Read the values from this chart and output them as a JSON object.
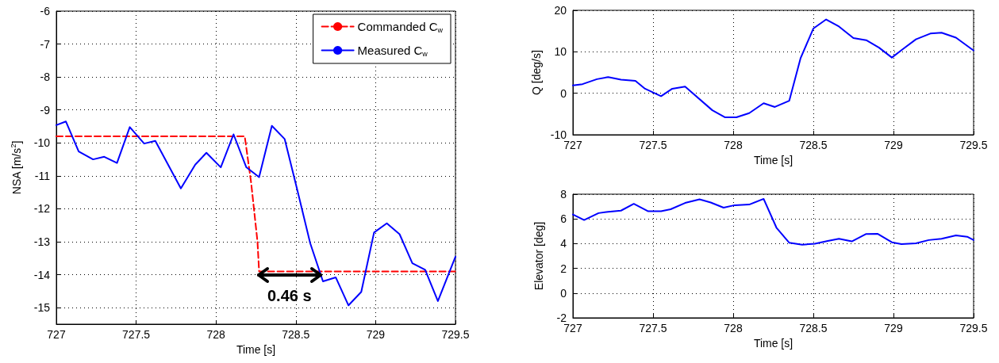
{
  "chart_data": [
    {
      "type": "line",
      "xlabel": "Time [s]",
      "ylabel": "NSA [m/s$^{2}$]",
      "xlim": [
        727,
        729.5
      ],
      "xticks": [
        727,
        727.5,
        728,
        728.5,
        729,
        729.5
      ],
      "ylim": [
        -15.5,
        -6
      ],
      "yticks": [
        -6,
        -7,
        -8,
        -9,
        -10,
        -11,
        -12,
        -13,
        -14,
        -15
      ],
      "grid": true,
      "legend": "top right",
      "marker": "none",
      "series": [
        {
          "name": "Commanded C$_{w}$",
          "color": "#ff0000",
          "line_style": "dashed",
          "x": [
            727,
            728.18,
            728.2,
            728.22,
            728.26,
            728.27,
            729.5
          ],
          "values": [
            -9.8,
            -9.8,
            -10.5,
            -11.2,
            -13.0,
            -13.9,
            -13.9
          ]
        },
        {
          "name": "Measured C$_{w}$",
          "color": "#0000ff",
          "line_style": "solid",
          "x": [
            727.0,
            727.06,
            727.14,
            727.23,
            727.3,
            727.38,
            727.46,
            727.55,
            727.62,
            727.78,
            727.87,
            727.94,
            728.03,
            728.11,
            728.19,
            728.27,
            728.35,
            728.43,
            728.51,
            728.59,
            728.67,
            728.75,
            728.83,
            728.91,
            728.99,
            729.07,
            729.15,
            729.23,
            729.31,
            729.39,
            729.5
          ],
          "values": [
            -9.46,
            -9.35,
            -10.26,
            -10.5,
            -10.42,
            -10.61,
            -9.52,
            -10.02,
            -9.94,
            -11.38,
            -10.66,
            -10.3,
            -10.74,
            -9.74,
            -10.74,
            -11.04,
            -9.48,
            -9.88,
            -11.44,
            -13.04,
            -14.2,
            -14.08,
            -14.93,
            -14.52,
            -12.72,
            -12.44,
            -12.77,
            -13.65,
            -13.85,
            -14.8,
            -13.45
          ]
        }
      ],
      "annotations": [
        {
          "text": "0.46 s",
          "x": 728.46,
          "y": -14.0
        }
      ]
    },
    {
      "type": "line",
      "xlabel": "Time [s]",
      "ylabel": "Q [deg/s]",
      "xlim": [
        727,
        729.5
      ],
      "xticks": [
        727,
        727.5,
        728,
        728.5,
        729,
        729.5
      ],
      "ylim": [
        -10,
        20
      ],
      "yticks": [
        -10,
        0,
        10,
        20
      ],
      "grid": true,
      "marker": "none",
      "series": [
        {
          "color": "#0000ff",
          "x": [
            727.0,
            727.06,
            727.15,
            727.22,
            727.3,
            727.39,
            727.45,
            727.55,
            727.62,
            727.7,
            727.87,
            727.95,
            728.02,
            728.1,
            728.19,
            728.26,
            728.35,
            728.42,
            728.5,
            728.58,
            728.66,
            728.75,
            728.83,
            728.91,
            728.99,
            729.06,
            729.14,
            729.23,
            729.3,
            729.39,
            729.5
          ],
          "values": [
            1.9,
            2.2,
            3.4,
            3.9,
            3.3,
            3.0,
            1.1,
            -0.7,
            1.1,
            1.6,
            -4.1,
            -5.8,
            -5.8,
            -4.8,
            -2.4,
            -3.3,
            -1.8,
            8.4,
            15.6,
            17.8,
            16.1,
            13.3,
            12.8,
            11.0,
            8.6,
            10.7,
            13.0,
            14.4,
            14.6,
            13.4,
            10.3
          ]
        }
      ]
    },
    {
      "type": "line",
      "xlabel": "Time [s]",
      "ylabel": "Elevator [deg]",
      "xlim": [
        727,
        729.5
      ],
      "xticks": [
        727,
        727.5,
        728,
        728.5,
        729,
        729.5
      ],
      "ylim": [
        -2,
        8
      ],
      "yticks": [
        -2,
        0,
        2,
        4,
        6,
        8
      ],
      "grid": true,
      "marker": "none",
      "series": [
        {
          "color": "#0000ff",
          "x": [
            727.0,
            727.07,
            727.16,
            727.22,
            727.3,
            727.38,
            727.47,
            727.55,
            727.61,
            727.7,
            727.79,
            727.86,
            727.94,
            728.01,
            728.1,
            728.19,
            728.27,
            728.35,
            728.43,
            728.51,
            728.59,
            728.66,
            728.74,
            728.83,
            728.9,
            728.99,
            729.05,
            729.14,
            729.22,
            729.3,
            729.39,
            729.46,
            729.5
          ],
          "values": [
            6.36,
            5.91,
            6.47,
            6.58,
            6.67,
            7.22,
            6.62,
            6.62,
            6.78,
            7.29,
            7.58,
            7.33,
            6.91,
            7.11,
            7.16,
            7.62,
            5.29,
            4.07,
            3.91,
            4.0,
            4.22,
            4.4,
            4.18,
            4.78,
            4.8,
            4.11,
            3.96,
            4.02,
            4.29,
            4.4,
            4.67,
            4.56,
            4.29
          ]
        }
      ]
    }
  ]
}
